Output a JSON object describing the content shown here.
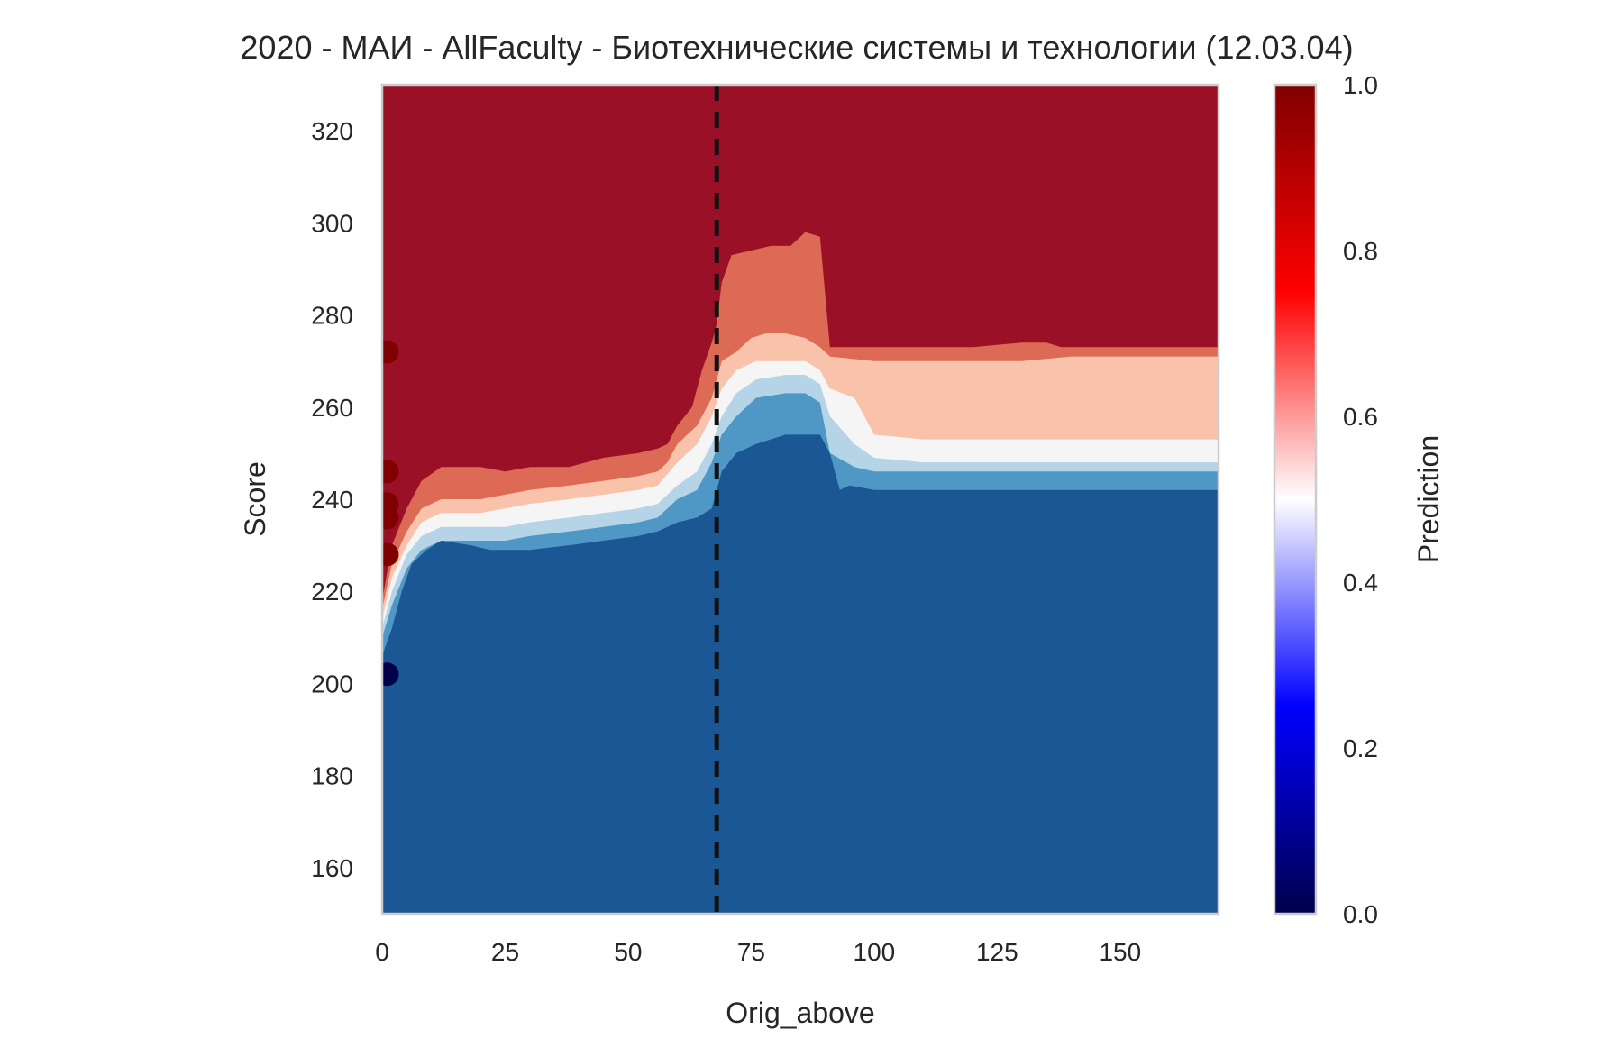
{
  "chart_data": {
    "type": "contour",
    "title": "2020 - МАИ - AllFaculty - Биотехнические системы и технологии (12.03.04)",
    "xlabel": "Orig_above",
    "ylabel": "Score",
    "xlim": [
      0,
      170
    ],
    "ylim": [
      150,
      330
    ],
    "xticks": [
      "0",
      "25",
      "50",
      "75",
      "100",
      "125",
      "150"
    ],
    "xtick_values": [
      0,
      25,
      50,
      75,
      100,
      125,
      150
    ],
    "yticks": [
      "160",
      "180",
      "200",
      "220",
      "240",
      "260",
      "280",
      "300",
      "320"
    ],
    "ytick_values": [
      160,
      180,
      200,
      220,
      240,
      260,
      280,
      300,
      320
    ],
    "grid": false,
    "colorbar": {
      "label": "Prediction",
      "range": [
        0,
        1
      ],
      "ticks": [
        "0.0",
        "0.2",
        "0.4",
        "0.6",
        "0.8",
        "1.0"
      ],
      "tick_values": [
        0.0,
        0.2,
        0.4,
        0.6,
        0.8,
        1.0
      ],
      "colormap": "seismic",
      "colors": [
        "#00004c",
        "#0000ff",
        "#ffffff",
        "#ff0000",
        "#800000"
      ]
    },
    "vline": {
      "x": 68,
      "style": "dashed",
      "color": "#111111"
    },
    "levels": [
      {
        "name": "level-0.9",
        "color": "#9a1127",
        "boundary": [
          [
            0,
            218
          ],
          [
            2,
            230
          ],
          [
            5,
            238
          ],
          [
            8,
            244
          ],
          [
            12,
            247
          ],
          [
            20,
            247
          ],
          [
            25,
            246
          ],
          [
            30,
            247
          ],
          [
            38,
            247
          ],
          [
            45,
            249
          ],
          [
            52,
            250
          ],
          [
            56,
            251
          ],
          [
            58,
            252
          ],
          [
            60,
            256
          ],
          [
            63,
            260
          ],
          [
            65,
            268
          ],
          [
            67,
            274
          ],
          [
            68,
            278
          ],
          [
            69,
            287
          ],
          [
            71,
            293
          ],
          [
            75,
            294
          ],
          [
            79,
            295
          ],
          [
            83,
            295
          ],
          [
            86,
            298
          ],
          [
            89,
            297
          ],
          [
            91,
            273
          ],
          [
            120,
            273
          ],
          [
            130,
            274
          ],
          [
            135,
            274
          ],
          [
            138,
            273
          ],
          [
            170,
            273
          ]
        ]
      },
      {
        "name": "level-0.7",
        "color": "#dc6a55",
        "boundary": [
          [
            0,
            216
          ],
          [
            2,
            226
          ],
          [
            5,
            233
          ],
          [
            8,
            238
          ],
          [
            12,
            240
          ],
          [
            20,
            240
          ],
          [
            25,
            241
          ],
          [
            30,
            242
          ],
          [
            38,
            243
          ],
          [
            45,
            244
          ],
          [
            52,
            245
          ],
          [
            56,
            246
          ],
          [
            58,
            248
          ],
          [
            60,
            252
          ],
          [
            64,
            256
          ],
          [
            67,
            262
          ],
          [
            69,
            270
          ],
          [
            72,
            272
          ],
          [
            75,
            275
          ],
          [
            78,
            276
          ],
          [
            82,
            276
          ],
          [
            86,
            275
          ],
          [
            89,
            273
          ],
          [
            91,
            271
          ],
          [
            100,
            270
          ],
          [
            130,
            270
          ],
          [
            140,
            271
          ],
          [
            170,
            271
          ]
        ]
      },
      {
        "name": "level-0.6",
        "color": "#f8c3aa",
        "boundary": [
          [
            0,
            214
          ],
          [
            2,
            223
          ],
          [
            5,
            230
          ],
          [
            8,
            235
          ],
          [
            12,
            237
          ],
          [
            20,
            237
          ],
          [
            25,
            238
          ],
          [
            30,
            239
          ],
          [
            38,
            240
          ],
          [
            45,
            241
          ],
          [
            52,
            242
          ],
          [
            56,
            243
          ],
          [
            60,
            248
          ],
          [
            64,
            252
          ],
          [
            67,
            258
          ],
          [
            69,
            264
          ],
          [
            72,
            268
          ],
          [
            76,
            270
          ],
          [
            82,
            270
          ],
          [
            86,
            270
          ],
          [
            89,
            268
          ],
          [
            91,
            264
          ],
          [
            96,
            262
          ],
          [
            98,
            258
          ],
          [
            100,
            254
          ],
          [
            110,
            253
          ],
          [
            170,
            253
          ]
        ]
      },
      {
        "name": "level-0.5",
        "color": "#f5f5f5",
        "boundary": [
          [
            0,
            212
          ],
          [
            2,
            220
          ],
          [
            5,
            228
          ],
          [
            8,
            232
          ],
          [
            12,
            234
          ],
          [
            20,
            234
          ],
          [
            25,
            234
          ],
          [
            30,
            235
          ],
          [
            38,
            236
          ],
          [
            45,
            237
          ],
          [
            52,
            238
          ],
          [
            56,
            239
          ],
          [
            60,
            243
          ],
          [
            64,
            246
          ],
          [
            67,
            252
          ],
          [
            69,
            258
          ],
          [
            72,
            263
          ],
          [
            76,
            266
          ],
          [
            82,
            267
          ],
          [
            86,
            267
          ],
          [
            89,
            265
          ],
          [
            91,
            258
          ],
          [
            96,
            252
          ],
          [
            100,
            249
          ],
          [
            110,
            248
          ],
          [
            170,
            248
          ]
        ]
      },
      {
        "name": "level-0.4",
        "color": "#b6d4e7",
        "boundary": [
          [
            0,
            210
          ],
          [
            2,
            217
          ],
          [
            5,
            225
          ],
          [
            8,
            229
          ],
          [
            12,
            231
          ],
          [
            20,
            231
          ],
          [
            25,
            231
          ],
          [
            30,
            232
          ],
          [
            38,
            233
          ],
          [
            45,
            234
          ],
          [
            52,
            235
          ],
          [
            56,
            236
          ],
          [
            60,
            240
          ],
          [
            64,
            242
          ],
          [
            67,
            248
          ],
          [
            69,
            254
          ],
          [
            72,
            258
          ],
          [
            76,
            262
          ],
          [
            82,
            263
          ],
          [
            86,
            263
          ],
          [
            89,
            261
          ],
          [
            91,
            250
          ],
          [
            96,
            247
          ],
          [
            100,
            246
          ],
          [
            110,
            246
          ],
          [
            170,
            246
          ]
        ]
      },
      {
        "name": "level-0.3",
        "color": "#4f98c5",
        "boundary": [
          [
            0,
            206
          ],
          [
            2,
            212
          ],
          [
            4,
            220
          ],
          [
            6,
            226
          ],
          [
            9,
            229
          ],
          [
            12,
            231
          ],
          [
            18,
            230
          ],
          [
            22,
            229
          ],
          [
            26,
            229
          ],
          [
            30,
            229
          ],
          [
            38,
            230
          ],
          [
            45,
            231
          ],
          [
            52,
            232
          ],
          [
            56,
            233
          ],
          [
            60,
            235
          ],
          [
            64,
            236
          ],
          [
            67,
            238
          ],
          [
            69,
            246
          ],
          [
            72,
            250
          ],
          [
            76,
            252
          ],
          [
            82,
            254
          ],
          [
            86,
            254
          ],
          [
            89,
            254
          ],
          [
            91,
            250
          ],
          [
            93,
            242
          ],
          [
            95,
            243
          ],
          [
            100,
            242
          ],
          [
            170,
            242
          ]
        ]
      }
    ],
    "base_color": "#1b5695",
    "points": [
      {
        "x": 1,
        "y": 272,
        "value": 1.0
      },
      {
        "x": 1,
        "y": 246,
        "value": 1.0
      },
      {
        "x": 1,
        "y": 239,
        "value": 1.0
      },
      {
        "x": 1,
        "y": 236,
        "value": 1.0
      },
      {
        "x": 1,
        "y": 228,
        "value": 1.0
      },
      {
        "x": 1,
        "y": 202,
        "value": 0.0
      }
    ]
  }
}
